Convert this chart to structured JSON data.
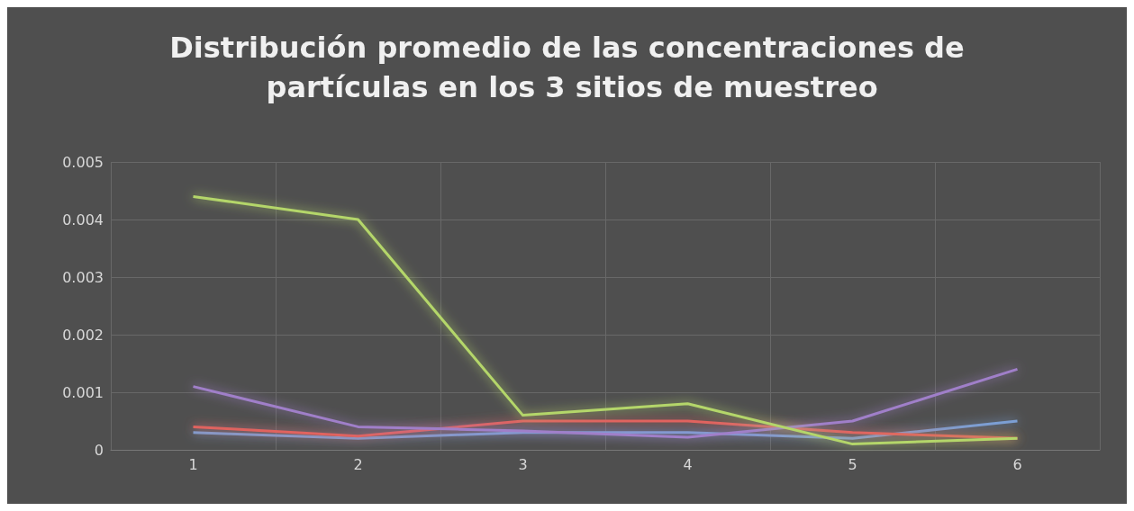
{
  "chart_data": {
    "type": "line",
    "title": "Distribución promedio de las concentraciones de partículas en los 3 sitios de muestreo",
    "categories": [
      "1",
      "2",
      "3",
      "4",
      "5",
      "6"
    ],
    "series": [
      {
        "color": "#b4d66a",
        "values": [
          0.0044,
          0.004,
          0.0006,
          0.0008,
          0.0001,
          0.0002
        ]
      },
      {
        "color": "#a07fc9",
        "values": [
          0.0011,
          0.0004,
          0.00033,
          0.00022,
          0.0005,
          0.0014
        ]
      },
      {
        "color": "#e0635e",
        "values": [
          0.0004,
          0.00024,
          0.0005,
          0.0005,
          0.0003,
          0.0002
        ]
      },
      {
        "color": "#7c9fd4",
        "values": [
          0.0003,
          0.0002,
          0.0003,
          0.0003,
          0.0002,
          0.0005
        ]
      }
    ],
    "ylim": [
      0,
      0.005
    ],
    "yticks": [
      0,
      0.001,
      0.002,
      0.003,
      0.004,
      0.005
    ],
    "grid": true,
    "marker": "none",
    "line_style": "solid"
  }
}
